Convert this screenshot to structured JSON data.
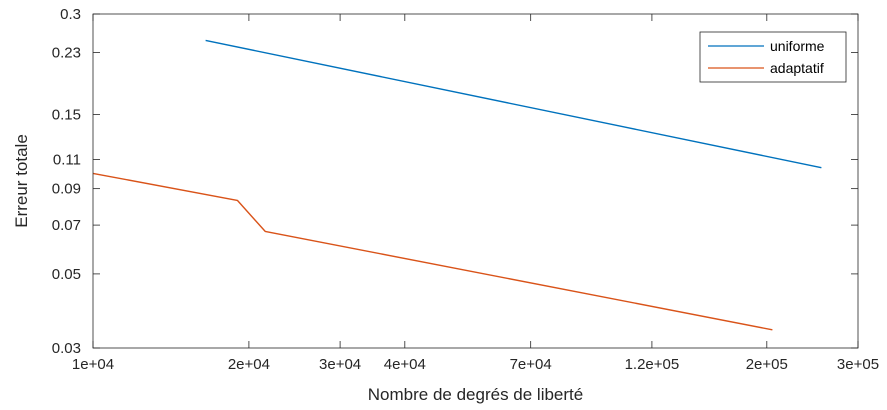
{
  "chart_data": {
    "type": "line",
    "xlabel": "Nombre de degrés de liberté",
    "ylabel": "Erreur totale",
    "x_scale": "log",
    "y_scale": "log",
    "xlim": [
      10000,
      300000
    ],
    "ylim": [
      0.03,
      0.3
    ],
    "x_ticks": [
      {
        "value": 10000,
        "label": "1e+04"
      },
      {
        "value": 20000,
        "label": "2e+04"
      },
      {
        "value": 30000,
        "label": "3e+04"
      },
      {
        "value": 40000,
        "label": "4e+04"
      },
      {
        "value": 70000,
        "label": "7e+04"
      },
      {
        "value": 120000,
        "label": "1.2e+05"
      },
      {
        "value": 200000,
        "label": "2e+05"
      },
      {
        "value": 300000,
        "label": "3e+05"
      }
    ],
    "y_ticks": [
      {
        "value": 0.03,
        "label": "0.03"
      },
      {
        "value": 0.05,
        "label": "0.05"
      },
      {
        "value": 0.07,
        "label": "0.07"
      },
      {
        "value": 0.09,
        "label": "0.09"
      },
      {
        "value": 0.11,
        "label": "0.11"
      },
      {
        "value": 0.15,
        "label": "0.15"
      },
      {
        "value": 0.23,
        "label": "0.23"
      },
      {
        "value": 0.3,
        "label": "0.3"
      }
    ],
    "grid": false,
    "legend_position": "top-right",
    "series": [
      {
        "name": "uniforme",
        "color": "#0072BD",
        "points": [
          {
            "x": 16500,
            "y": 0.25
          },
          {
            "x": 255000,
            "y": 0.104
          }
        ]
      },
      {
        "name": "adaptatif",
        "color": "#D95319",
        "points": [
          {
            "x": 10000,
            "y": 0.1
          },
          {
            "x": 19000,
            "y": 0.083
          },
          {
            "x": 21500,
            "y": 0.067
          },
          {
            "x": 205000,
            "y": 0.034
          }
        ]
      }
    ]
  }
}
